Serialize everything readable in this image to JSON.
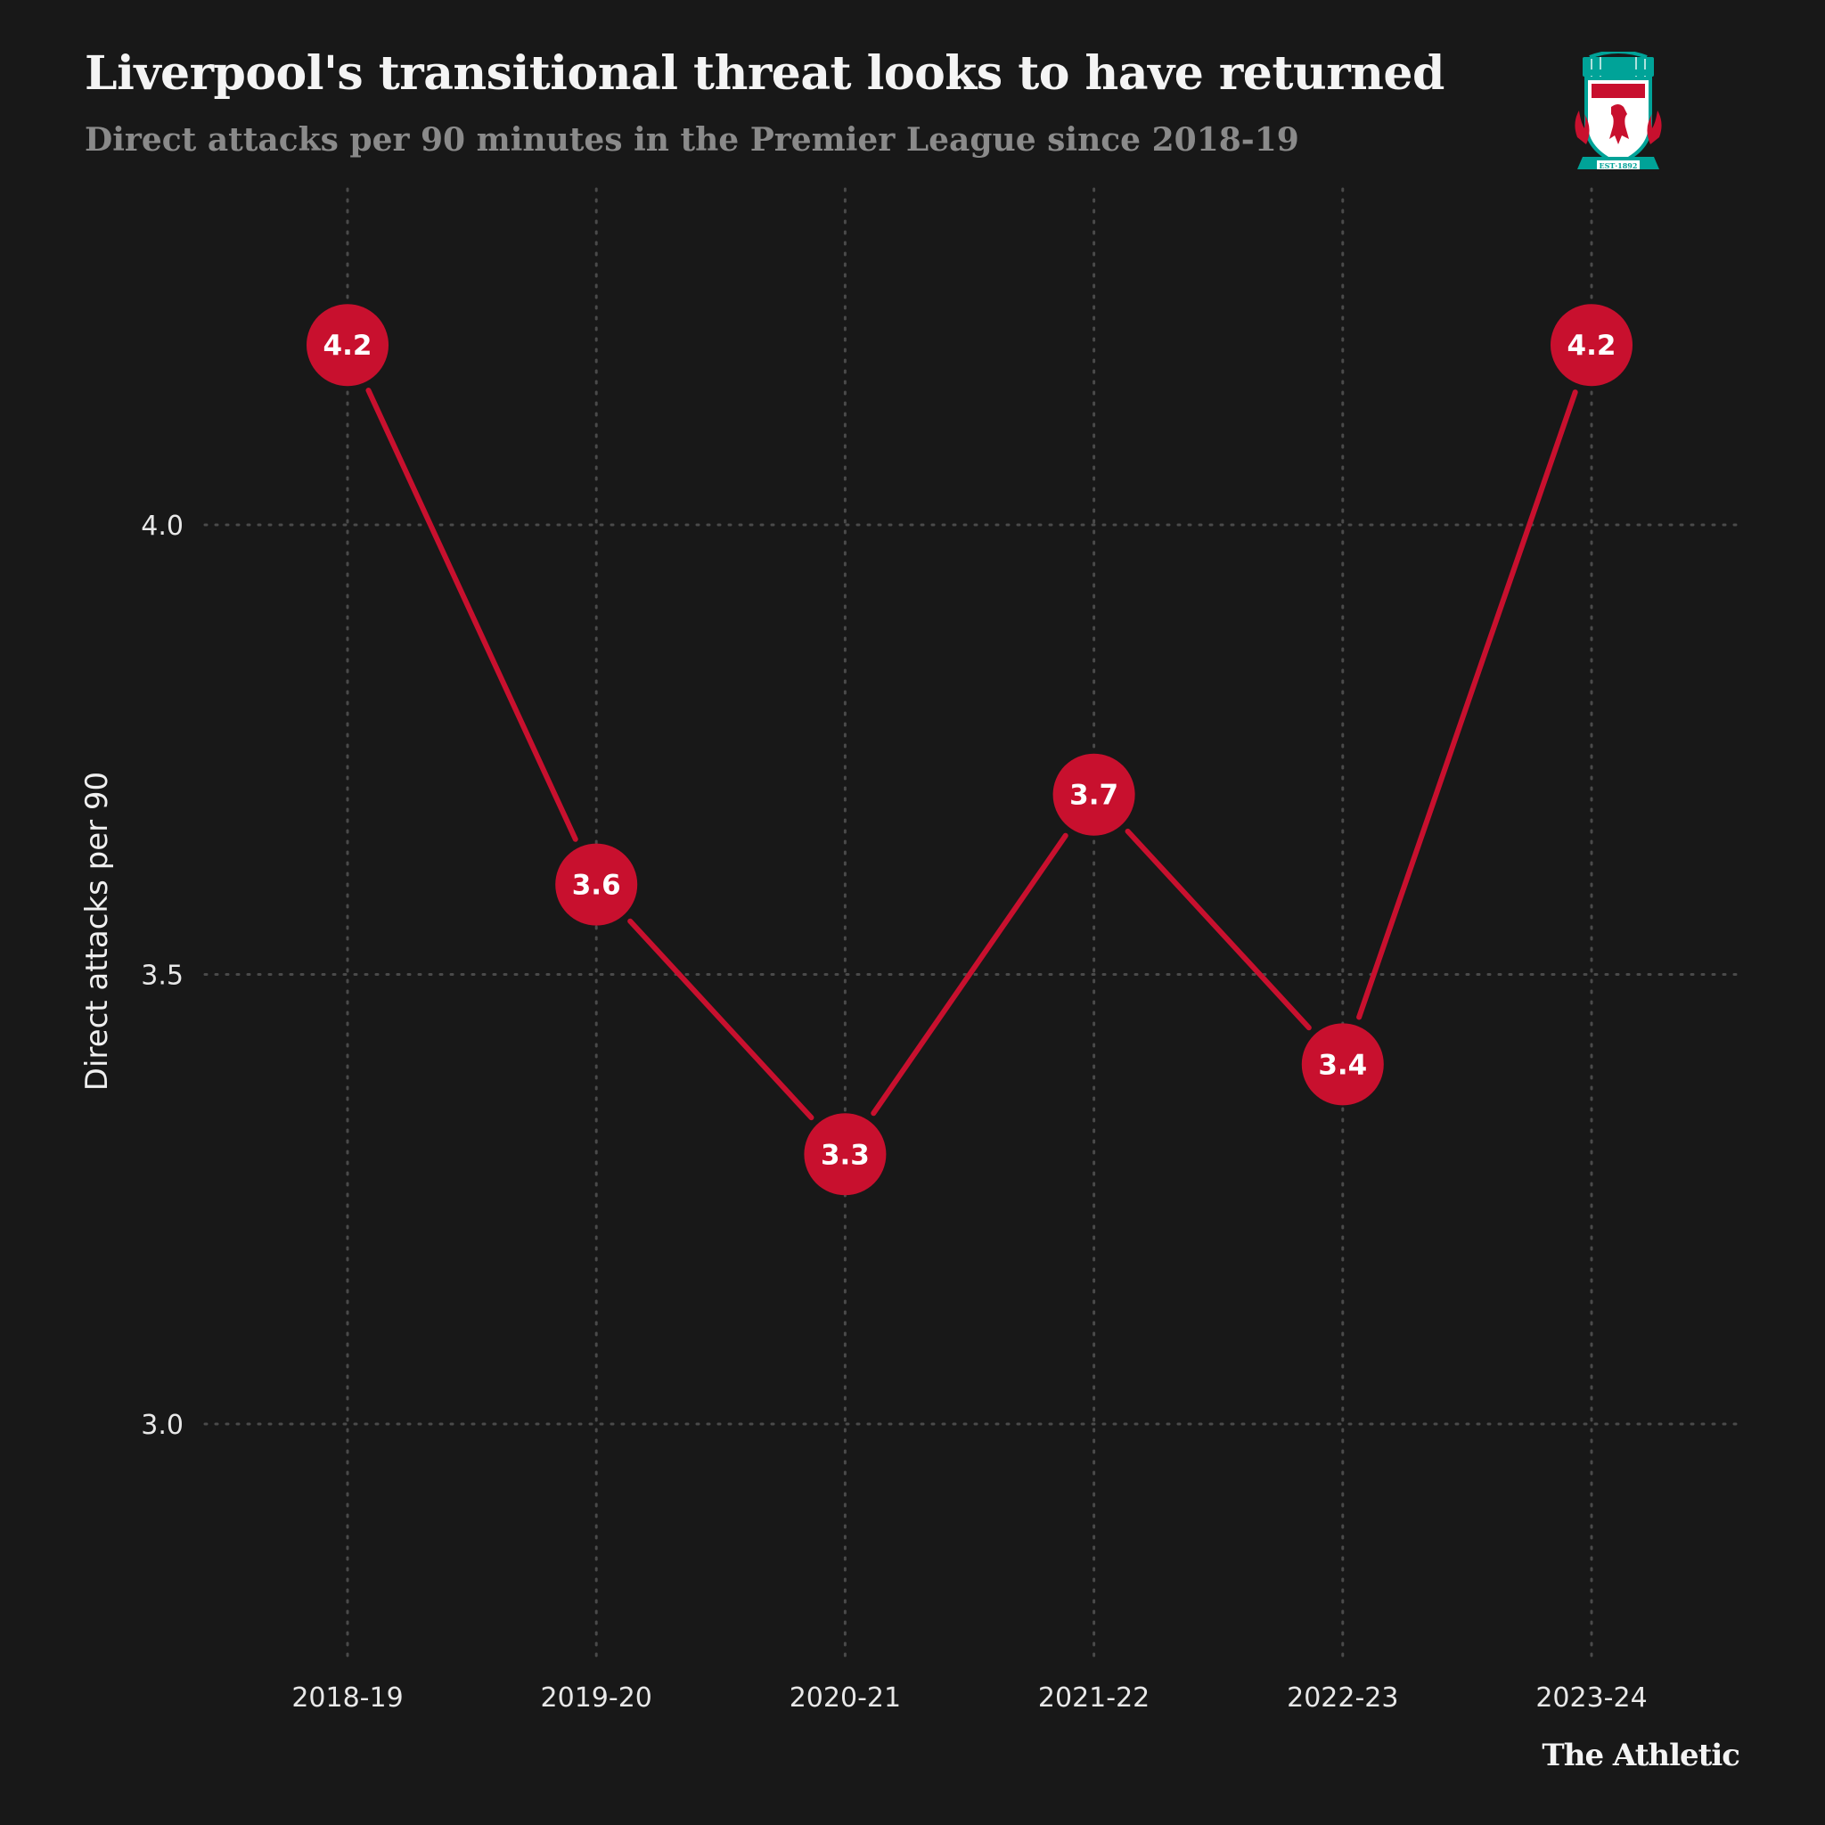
{
  "header": {
    "title": "Liverpool's transitional threat looks to have returned",
    "subtitle": "Direct attacks per 90 minutes in the Premier League since 2018-19"
  },
  "crest": {
    "banner_text": "YOU'LL NEVER WALK ALONE",
    "club_text": "LIVERPOOL",
    "club_subtext": "FOOTBALL CLUB",
    "est_text": "EST·1892",
    "colors": {
      "red": "#c8102e",
      "teal": "#00a398",
      "gold": "#f6c343"
    }
  },
  "chart_data": {
    "type": "line",
    "title": "Liverpool's transitional threat looks to have returned",
    "subtitle": "Direct attacks per 90 minutes in the Premier League since 2018-19",
    "categories": [
      "2018-19",
      "2019-20",
      "2020-21",
      "2021-22",
      "2022-23",
      "2023-24"
    ],
    "values": [
      4.2,
      3.6,
      3.3,
      3.7,
      3.4,
      4.2
    ],
    "value_labels": [
      "4.2",
      "3.6",
      "3.3",
      "3.7",
      "3.4",
      "4.2"
    ],
    "xlabel": "",
    "ylabel": "Direct attacks per 90",
    "ylim": [
      2.7,
      4.38
    ],
    "yticks": [
      3.0,
      3.5,
      4.0
    ],
    "ytick_labels": [
      "3.0",
      "3.5",
      "4.0"
    ],
    "grid": true,
    "line_color": "#c8102e",
    "background": "#181818"
  },
  "footer": {
    "brand": "The Athletic"
  }
}
